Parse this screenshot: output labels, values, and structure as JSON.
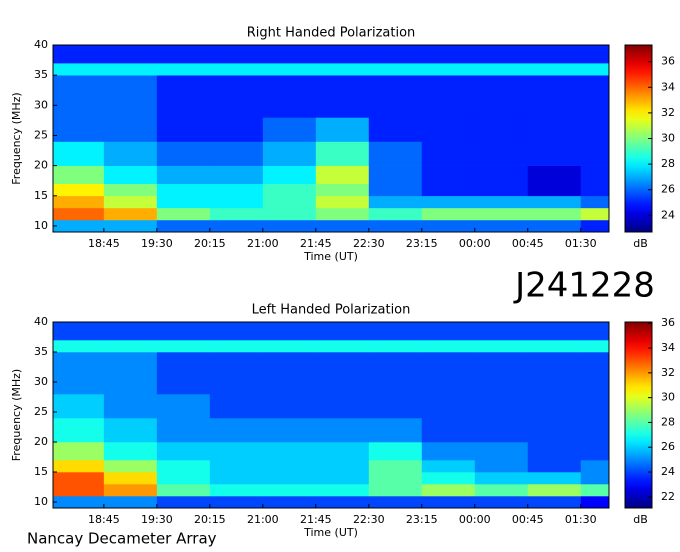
{
  "title": "J241228",
  "footer": "Nancay Decameter Array",
  "chart_data": [
    {
      "type": "heatmap",
      "title": "Right Handed Polarization",
      "x_label": "Time (UT)",
      "y_label": "Frequency (MHz)",
      "xlim": [
        18.03,
        25.9
      ],
      "ylim": [
        9,
        40
      ],
      "xticks": [
        {
          "value": 18.75,
          "label": "18:45"
        },
        {
          "value": 19.5,
          "label": "19:30"
        },
        {
          "value": 20.25,
          "label": "20:15"
        },
        {
          "value": 21,
          "label": "21:00"
        },
        {
          "value": 21.75,
          "label": "21:45"
        },
        {
          "value": 22.5,
          "label": "22:30"
        },
        {
          "value": 23.25,
          "label": "23:15"
        },
        {
          "value": 24,
          "label": "00:00"
        },
        {
          "value": 24.75,
          "label": "00:45"
        },
        {
          "value": 25.5,
          "label": "01:30"
        }
      ],
      "yticks": [
        10,
        15,
        20,
        25,
        30,
        35,
        40
      ],
      "xbins": [
        18.03,
        18.75,
        19.5,
        20.25,
        21,
        21.75,
        22.5,
        23.25,
        24,
        24.75,
        25.5,
        25.9
      ],
      "ybins": [
        9,
        11,
        13,
        15,
        17,
        20,
        24,
        28,
        35,
        37,
        40
      ],
      "z": [
        [
          27,
          27,
          26,
          26,
          26,
          26,
          26,
          26,
          26,
          26,
          25
        ],
        [
          34,
          33,
          30,
          29,
          29,
          30,
          29,
          30,
          30,
          30,
          31
        ],
        [
          33,
          31,
          28,
          28,
          29,
          31,
          27,
          27,
          27,
          27,
          26
        ],
        [
          32,
          30,
          28,
          28,
          29,
          30,
          26,
          25,
          25,
          24,
          25
        ],
        [
          30,
          28,
          27,
          27,
          28,
          31,
          26,
          25,
          25,
          24,
          25
        ],
        [
          28,
          27,
          26,
          26,
          27,
          29,
          26,
          25,
          25,
          25,
          25
        ],
        [
          26,
          26,
          25,
          25,
          26,
          27,
          25,
          25,
          25,
          25,
          25
        ],
        [
          26,
          26,
          25,
          25,
          25,
          25,
          25,
          25,
          25,
          25,
          25
        ],
        [
          28,
          28,
          28,
          28,
          28,
          28,
          28,
          28,
          28,
          28,
          28
        ],
        [
          25,
          25,
          25,
          25,
          25,
          25,
          25,
          25,
          25,
          25,
          25
        ]
      ],
      "colorbar": {
        "label": "dB",
        "lim": [
          22.7,
          37.3
        ],
        "ticks": [
          24,
          26,
          28,
          30,
          32,
          34,
          36
        ]
      }
    },
    {
      "type": "heatmap",
      "title": "Left Handed Polarization",
      "x_label": "Time (UT)",
      "y_label": "Frequency (MHz)",
      "xlim": [
        18.03,
        25.9
      ],
      "ylim": [
        9,
        40
      ],
      "xticks": [
        {
          "value": 18.75,
          "label": "18:45"
        },
        {
          "value": 19.5,
          "label": "19:30"
        },
        {
          "value": 20.25,
          "label": "20:15"
        },
        {
          "value": 21,
          "label": "21:00"
        },
        {
          "value": 21.75,
          "label": "21:45"
        },
        {
          "value": 22.5,
          "label": "22:30"
        },
        {
          "value": 23.25,
          "label": "23:15"
        },
        {
          "value": 24,
          "label": "00:00"
        },
        {
          "value": 24.75,
          "label": "00:45"
        },
        {
          "value": 25.5,
          "label": "01:30"
        }
      ],
      "yticks": [
        10,
        15,
        20,
        25,
        30,
        35,
        40
      ],
      "xbins": [
        18.03,
        18.75,
        19.5,
        20.25,
        21,
        21.75,
        22.5,
        23.25,
        24,
        24.75,
        25.5,
        25.9
      ],
      "ybins": [
        9,
        11,
        13,
        15,
        17,
        20,
        24,
        28,
        35,
        37,
        40
      ],
      "z": [
        [
          25,
          25,
          24,
          24,
          24,
          24,
          24,
          24,
          24,
          24,
          23
        ],
        [
          33,
          32,
          28,
          27,
          27,
          27,
          28,
          29,
          28,
          29,
          28
        ],
        [
          33,
          31,
          27,
          26,
          26,
          26,
          28,
          27,
          26,
          26,
          25
        ],
        [
          31,
          29,
          27,
          26,
          26,
          26,
          28,
          26,
          25,
          24,
          25
        ],
        [
          29,
          27,
          26,
          26,
          26,
          26,
          27,
          25,
          25,
          24,
          24
        ],
        [
          27,
          26,
          25,
          25,
          25,
          25,
          25,
          24,
          24,
          24,
          24
        ],
        [
          26,
          25,
          25,
          24,
          24,
          24,
          24,
          24,
          24,
          24,
          24
        ],
        [
          25,
          25,
          24,
          24,
          24,
          24,
          24,
          24,
          24,
          24,
          24
        ],
        [
          27,
          27,
          27,
          27,
          27,
          27,
          27,
          27,
          27,
          27,
          27
        ],
        [
          24,
          24,
          24,
          24,
          24,
          24,
          24,
          24,
          24,
          24,
          24
        ]
      ],
      "colorbar": {
        "label": "dB",
        "lim": [
          21.1,
          36.1
        ],
        "ticks": [
          22,
          24,
          26,
          28,
          30,
          32,
          34,
          36
        ]
      }
    }
  ]
}
